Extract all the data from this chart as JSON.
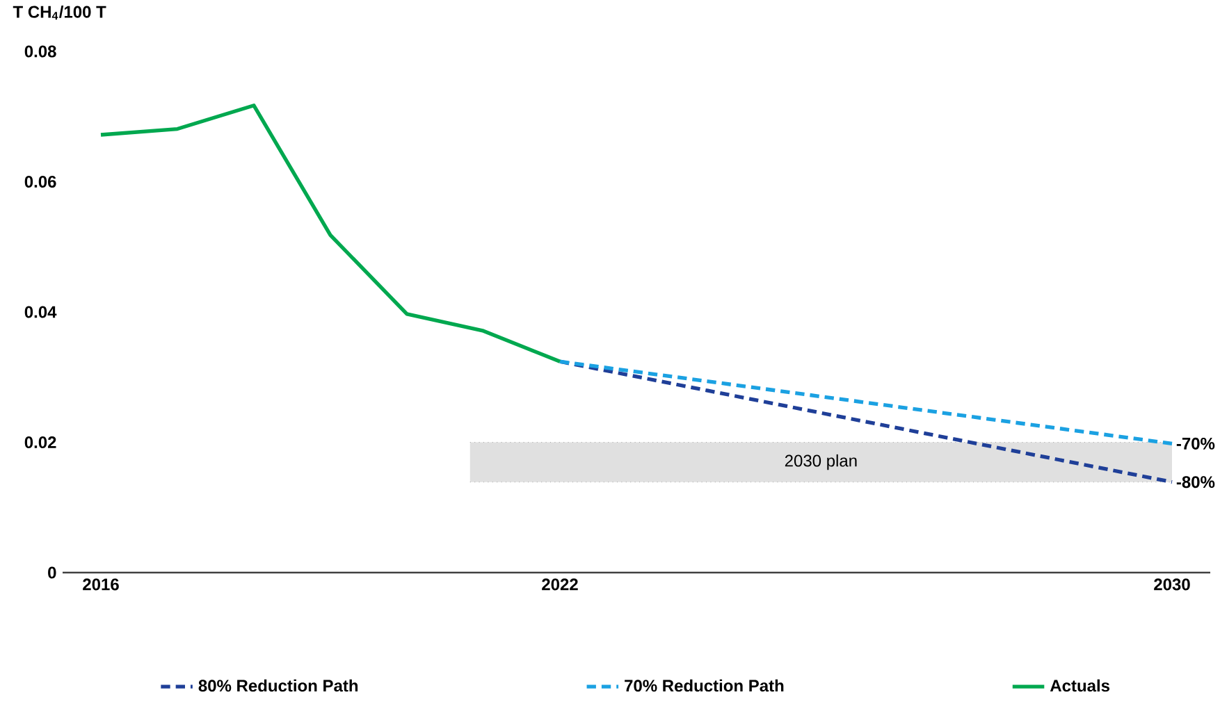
{
  "chart_data": {
    "type": "line",
    "ylabel": "T CH$_{4}$/100 T",
    "x": [
      2016,
      2017,
      2018,
      2019,
      2020,
      2021,
      2022,
      2030
    ],
    "series": [
      {
        "name": "80% Reduction Path",
        "color": "#1f3f98",
        "line_style": "dashed",
        "values": [
          null,
          null,
          null,
          null,
          null,
          null,
          0.0324,
          0.0139
        ]
      },
      {
        "name": "70% Reduction Path",
        "color": "#1ba1e2",
        "line_style": "dashed",
        "values": [
          null,
          null,
          null,
          null,
          null,
          null,
          0.0324,
          0.0198
        ]
      },
      {
        "name": "Actuals",
        "color": "#00a84f",
        "line_style": "solid",
        "values": [
          0.0672,
          0.0681,
          0.0717,
          0.0518,
          0.0397,
          0.0371,
          0.0324,
          null
        ]
      }
    ],
    "xlim": [
      2015.5,
      2030.5
    ],
    "xticks": [
      2016,
      2022,
      2030
    ],
    "ylim": [
      0,
      0.08
    ],
    "yticks": [
      {
        "value": 0,
        "label": "0"
      },
      {
        "value": 0.02,
        "label": "0.02"
      },
      {
        "value": 0.04,
        "label": "0.04"
      },
      {
        "value": 0.06,
        "label": "0.06"
      },
      {
        "value": 0.08,
        "label": "0.08"
      }
    ],
    "bands": [
      {
        "axis": "y",
        "from": 0.0139,
        "to": 0.02,
        "label": "2030 plan",
        "color": "#e0e0e0"
      }
    ],
    "annotations": [
      {
        "text": "-70%",
        "x": 2030,
        "y": 0.0198
      },
      {
        "text": "-80%",
        "x": 2030,
        "y": 0.0139
      }
    ],
    "grid": false,
    "legend": "bottom",
    "marker": "none"
  }
}
